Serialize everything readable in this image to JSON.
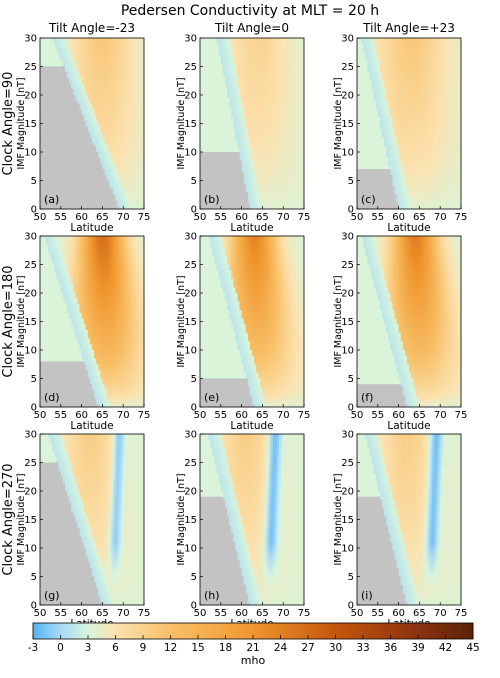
{
  "chart_data": {
    "type": "heatmap",
    "title": "Pedersen Conductivity at MLT = 20 h",
    "columns": [
      "Tilt Angle=-23",
      "Tilt Angle=0",
      "Tilt Angle=+23"
    ],
    "rows": [
      "Clock Angle=90",
      "Clock Angle=180",
      "Clock Angle=270"
    ],
    "xlabel": "Latitude",
    "ylabel": "IMF Magnitude [nT]",
    "xlim": [
      50,
      75
    ],
    "ylim": [
      0,
      30
    ],
    "xticks": [
      "50",
      "55",
      "60",
      "65",
      "70",
      "75"
    ],
    "yticks": [
      "0",
      "5",
      "10",
      "15",
      "20",
      "25",
      "30"
    ],
    "colorbar": {
      "label": "mho",
      "min": -3,
      "max": 45,
      "ticks": [
        "-3",
        "0",
        "3",
        "6",
        "9",
        "12",
        "15",
        "18",
        "21",
        "24",
        "27",
        "30",
        "33",
        "36",
        "39",
        "42",
        "45"
      ],
      "stops": [
        {
          "v": -3,
          "color": "#55b4f2"
        },
        {
          "v": 0,
          "color": "#a8d8f6"
        },
        {
          "v": 3,
          "color": "#d8f5dc"
        },
        {
          "v": 6,
          "color": "#fbe2b0"
        },
        {
          "v": 12,
          "color": "#f8c068"
        },
        {
          "v": 21,
          "color": "#f0962e"
        },
        {
          "v": 30,
          "color": "#c4560c"
        },
        {
          "v": 39,
          "color": "#8c3210"
        },
        {
          "v": 45,
          "color": "#5a2208"
        }
      ]
    },
    "no_data_color": "#c3c3c3",
    "panels": [
      {
        "label": "(a)",
        "clock": 90,
        "tilt": -23,
        "peak_lat": 65,
        "peak_val": 10,
        "peak_width": 7,
        "peak_spread": 3,
        "peak_tilt": 0,
        "blue_lat": null,
        "blue_val": 0,
        "blue_width": 0,
        "cut_lat_top": 53,
        "cut_lat_bottom": 69,
        "gray_top_imf": 25
      },
      {
        "label": "(b)",
        "clock": 90,
        "tilt": 0,
        "peak_lat": 64,
        "peak_val": 8,
        "peak_width": 7,
        "peak_spread": 3,
        "peak_tilt": 0,
        "blue_lat": null,
        "blue_val": 0,
        "blue_width": 0,
        "cut_lat_top": 54,
        "cut_lat_bottom": 62,
        "gray_top_imf": 10
      },
      {
        "label": "(c)",
        "clock": 90,
        "tilt": 23,
        "peak_lat": 63,
        "peak_val": 10,
        "peak_width": 8,
        "peak_spread": 3,
        "peak_tilt": 0,
        "blue_lat": null,
        "blue_val": 0,
        "blue_width": 0,
        "cut_lat_top": 51,
        "cut_lat_bottom": 60,
        "gray_top_imf": 7
      },
      {
        "label": "(d)",
        "clock": 180,
        "tilt": -23,
        "peak_lat": 65,
        "peak_val": 26,
        "peak_width": 5,
        "peak_spread": 5,
        "peak_tilt": 0.4,
        "blue_lat": null,
        "blue_val": 0,
        "blue_width": 0,
        "cut_lat_top": 51,
        "cut_lat_bottom": 64,
        "gray_top_imf": 8
      },
      {
        "label": "(e)",
        "clock": 180,
        "tilt": 0,
        "peak_lat": 63,
        "peak_val": 23,
        "peak_width": 5,
        "peak_spread": 5,
        "peak_tilt": 0.4,
        "blue_lat": null,
        "blue_val": 0,
        "blue_width": 0,
        "cut_lat_top": 52,
        "cut_lat_bottom": 63,
        "gray_top_imf": 5
      },
      {
        "label": "(f)",
        "clock": 180,
        "tilt": 23,
        "peak_lat": 64,
        "peak_val": 24,
        "peak_width": 5,
        "peak_spread": 5,
        "peak_tilt": 0.4,
        "blue_lat": null,
        "blue_val": 0,
        "blue_width": 0,
        "cut_lat_top": 51,
        "cut_lat_bottom": 62,
        "gray_top_imf": 4
      },
      {
        "label": "(g)",
        "clock": 270,
        "tilt": -23,
        "peak_lat": 62,
        "peak_val": 9,
        "peak_width": 6,
        "peak_spread": 3,
        "peak_tilt": 0,
        "blue_lat": 69,
        "blue_val": -2,
        "blue_width": 1.4,
        "cut_lat_top": 52,
        "cut_lat_bottom": 65,
        "gray_top_imf": 25
      },
      {
        "label": "(h)",
        "clock": 270,
        "tilt": 0,
        "peak_lat": 61,
        "peak_val": 9,
        "peak_width": 6,
        "peak_spread": 3,
        "peak_tilt": 0,
        "blue_lat": 68,
        "blue_val": -3,
        "blue_width": 1.6,
        "cut_lat_top": 52,
        "cut_lat_bottom": 62,
        "gray_top_imf": 19
      },
      {
        "label": "(i)",
        "clock": 270,
        "tilt": 23,
        "peak_lat": 62,
        "peak_val": 9,
        "peak_width": 6,
        "peak_spread": 3,
        "peak_tilt": 0,
        "blue_lat": 69,
        "blue_val": -3,
        "blue_width": 1.6,
        "cut_lat_top": 52,
        "cut_lat_bottom": 62,
        "gray_top_imf": 19
      }
    ]
  }
}
